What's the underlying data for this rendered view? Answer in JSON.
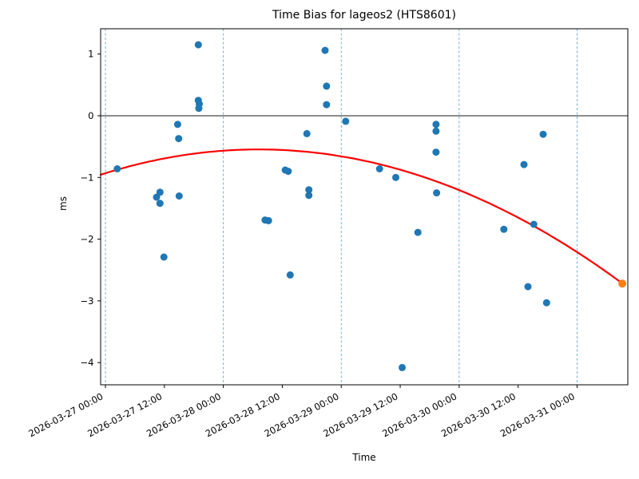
{
  "figure": {
    "background": "#ffffff"
  },
  "chart_data": {
    "type": "scatter",
    "title": "Time Bias for lageos2 (HTS8601)",
    "xlabel": "Time",
    "ylabel": "ms",
    "x_unit": "hours since 2026-03-27 00:00",
    "xlim_hours": [
      -0.98,
      106.33
    ],
    "ylim": [
      -4.36,
      1.41
    ],
    "grid": "vertical dashed lines at day boundaries",
    "x_ticks": [
      {
        "hours": 0,
        "label": "2026-03-27 00:00"
      },
      {
        "hours": 12,
        "label": "2026-03-27 12:00"
      },
      {
        "hours": 24,
        "label": "2026-03-28 00:00"
      },
      {
        "hours": 36,
        "label": "2026-03-28 12:00"
      },
      {
        "hours": 48,
        "label": "2026-03-29 00:00"
      },
      {
        "hours": 60,
        "label": "2026-03-29 12:00"
      },
      {
        "hours": 72,
        "label": "2026-03-30 00:00"
      },
      {
        "hours": 84,
        "label": "2026-03-30 12:00"
      },
      {
        "hours": 96,
        "label": "2026-03-31 00:00"
      }
    ],
    "y_ticks": [
      1,
      0,
      -1,
      -2,
      -3,
      -4
    ],
    "day_gridlines_hours": [
      0,
      24,
      48,
      72,
      96
    ],
    "zero_line_y": 0,
    "series": [
      {
        "name": "time-bias-observations",
        "color": "#1f77b4",
        "marker_radius": 4.5,
        "points": [
          [
            2.4,
            -0.86
          ],
          [
            10.4,
            -1.32
          ],
          [
            11.1,
            -1.24
          ],
          [
            11.1,
            -1.42
          ],
          [
            11.9,
            -2.29
          ],
          [
            14.7,
            -0.14
          ],
          [
            14.9,
            -0.37
          ],
          [
            15.0,
            -1.3
          ],
          [
            18.9,
            1.15
          ],
          [
            18.9,
            0.25
          ],
          [
            19.1,
            0.19
          ],
          [
            19.0,
            0.12
          ],
          [
            32.5,
            -1.69
          ],
          [
            33.2,
            -1.7
          ],
          [
            36.6,
            -0.88
          ],
          [
            37.2,
            -0.9
          ],
          [
            37.6,
            -2.58
          ],
          [
            41.0,
            -0.29
          ],
          [
            41.4,
            -1.2
          ],
          [
            41.4,
            -1.29
          ],
          [
            44.7,
            1.06
          ],
          [
            45.0,
            0.48
          ],
          [
            45.0,
            0.18
          ],
          [
            48.9,
            -0.09
          ],
          [
            55.8,
            -0.86
          ],
          [
            59.1,
            -1.0
          ],
          [
            60.4,
            -4.08
          ],
          [
            63.6,
            -1.89
          ],
          [
            67.3,
            -0.14
          ],
          [
            67.3,
            -0.25
          ],
          [
            67.3,
            -0.59
          ],
          [
            67.4,
            -1.25
          ],
          [
            81.1,
            -1.84
          ],
          [
            85.2,
            -0.79
          ],
          [
            86.0,
            -2.77
          ],
          [
            87.2,
            -1.76
          ],
          [
            89.1,
            -0.3
          ],
          [
            89.8,
            -3.03
          ]
        ]
      },
      {
        "name": "latest-point",
        "color": "#ff7f0e",
        "marker_radius": 5,
        "points": [
          [
            105.2,
            -2.72
          ]
        ]
      }
    ],
    "trend": {
      "name": "quadratic-fit",
      "color": "#ff0000",
      "line_width": 2.2,
      "coeffs_per_hour": [
        -0.000396,
        0.0247,
        -0.931
      ],
      "t_range": [
        -0.98,
        105.2
      ]
    },
    "style": {
      "gridline_color": "#4a90c4",
      "zero_line_color": "#1a1a1a",
      "spine_color": "#000000",
      "tick_label_color": "#000000"
    }
  }
}
